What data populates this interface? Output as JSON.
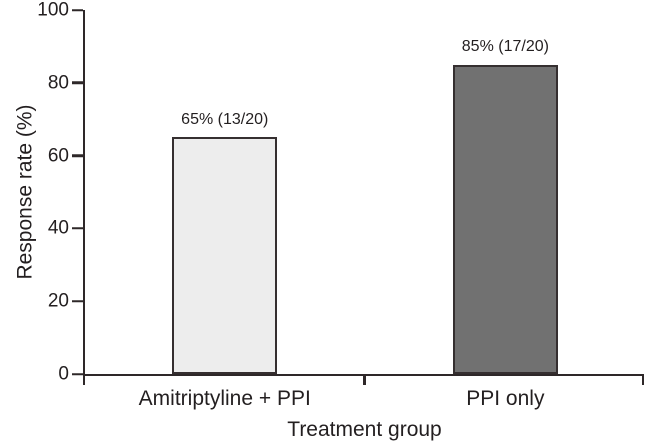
{
  "chart_data": {
    "type": "bar",
    "title": "",
    "xlabel": "Treatment group",
    "ylabel": "Response rate (%)",
    "categories": [
      "Amitriptyline + PPI",
      "PPI only"
    ],
    "values": [
      65,
      85
    ],
    "bar_labels": [
      "65% (13/20)",
      "85% (17/20)"
    ],
    "bar_fills": [
      "#ededed",
      "#717171"
    ],
    "bar_border": "#352f30",
    "ylim": [
      0,
      100
    ],
    "yticks": [
      0,
      20,
      40,
      60,
      80,
      100
    ],
    "ytick_labels": [
      "0",
      "20",
      "40",
      "60",
      "80",
      "100"
    ],
    "grid": false,
    "legend": "none"
  },
  "colors": {
    "axis": "#2e2829",
    "text": "#231f20",
    "background": "#ffffff"
  }
}
